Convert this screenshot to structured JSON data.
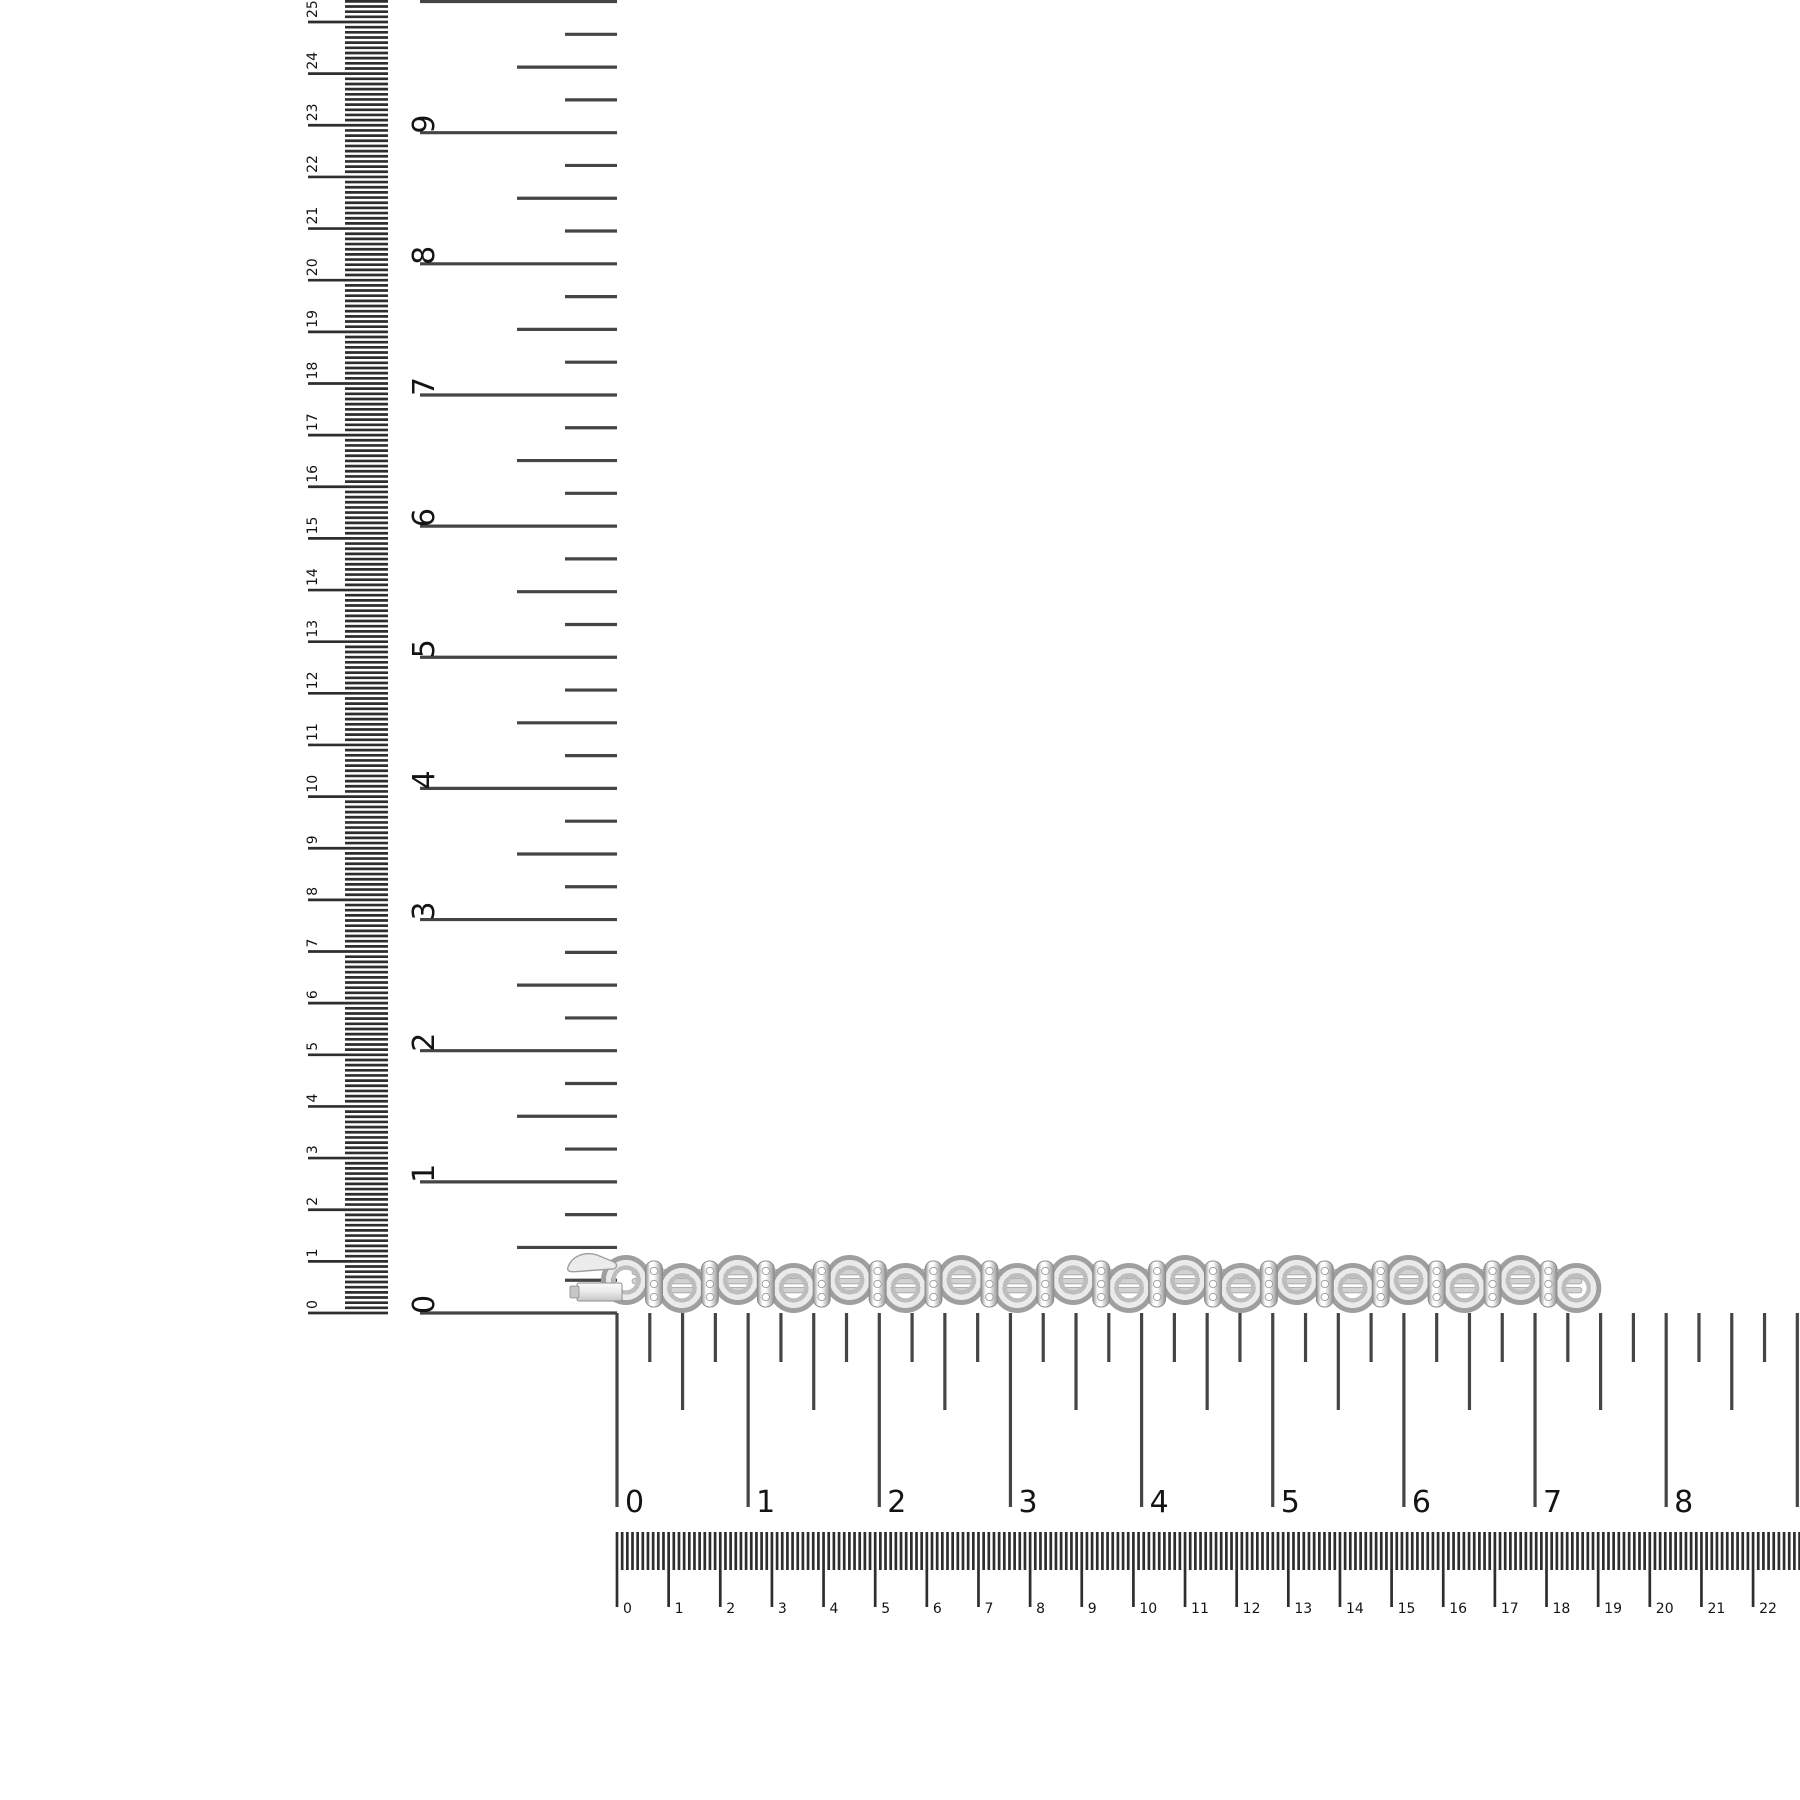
{
  "scene": {
    "object_name": "silver diamond-link chain bracelet with box clasp, laid horizontally over white with cm and inch rulers for scale"
  },
  "rulers": {
    "vertical_cm": {
      "unit": "cm",
      "orientation": "vertical",
      "labels": [
        "0",
        "1",
        "2",
        "3",
        "4",
        "5",
        "6",
        "7",
        "8",
        "9",
        "10",
        "11",
        "12",
        "13",
        "14",
        "15",
        "16",
        "17",
        "18",
        "19",
        "20",
        "21",
        "22",
        "23",
        "24",
        "25"
      ]
    },
    "vertical_inch": {
      "unit": "in",
      "orientation": "vertical",
      "labels": [
        "0",
        "1",
        "2",
        "3",
        "4",
        "5",
        "6",
        "7",
        "8",
        "9"
      ]
    },
    "horizontal_inch": {
      "unit": "in",
      "orientation": "horizontal",
      "labels": [
        "0",
        "1",
        "2",
        "3",
        "4",
        "5",
        "6",
        "7",
        "8"
      ]
    },
    "horizontal_cm": {
      "unit": "cm",
      "orientation": "horizontal",
      "labels": [
        "0",
        "1",
        "2",
        "3",
        "4",
        "5",
        "6",
        "7",
        "8",
        "9",
        "10",
        "11",
        "12",
        "13",
        "14",
        "15",
        "16",
        "17",
        "18",
        "19",
        "20",
        "21",
        "22"
      ]
    }
  },
  "bracelet": {
    "name": "diamond-accent link bracelet",
    "link_units": 17,
    "has_clasp": true
  },
  "colors": {
    "background": "#ffffff",
    "ruler_tick": "#454545",
    "ruler_band_tick": "#2e2e2e",
    "ruler_label": "#141414",
    "metal_highlight": "#fbfbfb",
    "metal_light": "#ececec",
    "metal_mid": "#c6c6c6",
    "metal_shadow": "#8d8d8d",
    "bar_fill": "#d2d2d2",
    "bar_edge": "#9c9c9c",
    "ring_outer": "#9f9f9f",
    "ring_inner_light": "#eaeaea",
    "ring_inner_mid": "#bdbdbd",
    "diamond_fill": "#ffffff",
    "diamond_edge": "#9b9b9b"
  }
}
